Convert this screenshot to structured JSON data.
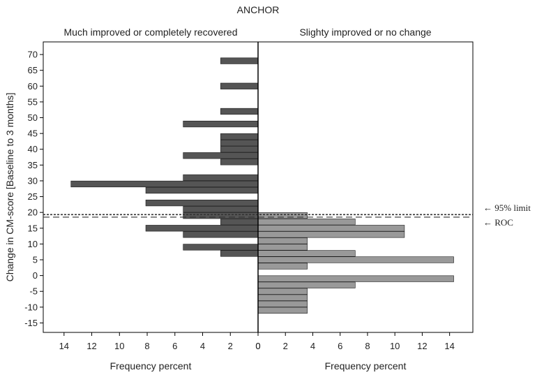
{
  "chart_data": {
    "type": "bar",
    "orientation": "horizontal",
    "title": "ANCHOR",
    "ylabel": "Change in CM-score [Baseline to 3 months]",
    "ylim": [
      -18,
      74
    ],
    "y_ticks": [
      70,
      65,
      60,
      55,
      50,
      45,
      40,
      35,
      30,
      25,
      20,
      15,
      10,
      5,
      0,
      -5,
      -10,
      -15
    ],
    "grid": false,
    "panels": [
      {
        "name": "Much improved or completely recovered",
        "xlabel": "Frequency percent",
        "xlim": [
          15.5,
          0
        ],
        "x_ticks": [
          14,
          12,
          10,
          8,
          6,
          4,
          2,
          0
        ],
        "color": "#555555",
        "bars": [
          {
            "y": 68,
            "value": 2.7
          },
          {
            "y": 60,
            "value": 2.7
          },
          {
            "y": 52,
            "value": 2.7
          },
          {
            "y": 48,
            "value": 5.4
          },
          {
            "y": 44,
            "value": 2.7
          },
          {
            "y": 42,
            "value": 2.7
          },
          {
            "y": 40,
            "value": 2.7
          },
          {
            "y": 38,
            "value": 5.4
          },
          {
            "y": 36,
            "value": 2.7
          },
          {
            "y": 31,
            "value": 5.4
          },
          {
            "y": 29,
            "value": 13.5
          },
          {
            "y": 27,
            "value": 8.1
          },
          {
            "y": 23,
            "value": 8.1
          },
          {
            "y": 21,
            "value": 5.4
          },
          {
            "y": 19,
            "value": 5.4
          },
          {
            "y": 17,
            "value": 2.7
          },
          {
            "y": 15,
            "value": 8.1
          },
          {
            "y": 13,
            "value": 5.4
          },
          {
            "y": 9,
            "value": 5.4
          },
          {
            "y": 7,
            "value": 2.7
          }
        ]
      },
      {
        "name": "Slighty improved or no change",
        "xlabel": "Frequency percent",
        "xlim": [
          0,
          15.7
        ],
        "x_ticks": [
          0,
          2,
          4,
          6,
          8,
          10,
          12,
          14
        ],
        "color": "#999999",
        "bars": [
          {
            "y": 19,
            "value": 3.6
          },
          {
            "y": 17,
            "value": 7.1
          },
          {
            "y": 15,
            "value": 10.7
          },
          {
            "y": 13,
            "value": 10.7
          },
          {
            "y": 11,
            "value": 3.6
          },
          {
            "y": 9,
            "value": 3.6
          },
          {
            "y": 7,
            "value": 7.1
          },
          {
            "y": 5,
            "value": 14.3
          },
          {
            "y": 3,
            "value": 3.6
          },
          {
            "y": -1,
            "value": 14.3
          },
          {
            "y": -3,
            "value": 7.1
          },
          {
            "y": -5,
            "value": 3.6
          },
          {
            "y": -7,
            "value": 3.6
          },
          {
            "y": -9,
            "value": 3.6
          },
          {
            "y": -11,
            "value": 3.6
          }
        ]
      }
    ],
    "reference_lines": [
      {
        "y": 19.3,
        "style": "dotted",
        "label": "← 95% limit"
      },
      {
        "y": 18.5,
        "style": "dashed",
        "label": "← ROC"
      }
    ]
  }
}
